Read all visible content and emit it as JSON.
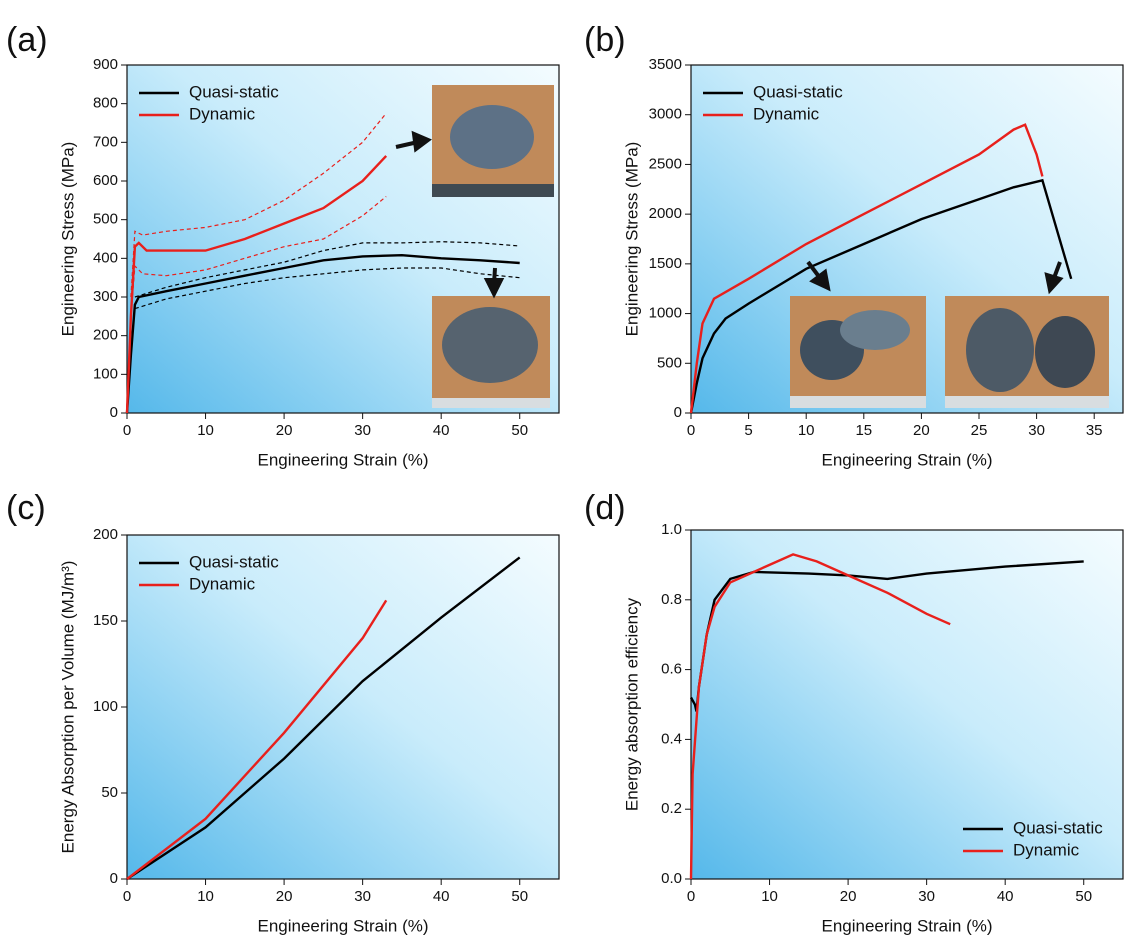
{
  "chart_data": [
    {
      "type": "line",
      "label": "(a)",
      "xlabel": "Engineering Strain (%)",
      "ylabel": "Engineering Stress (MPa)",
      "xlim": [
        0,
        55
      ],
      "ylim": [
        0,
        900
      ],
      "xticks": [
        0,
        10,
        20,
        30,
        40,
        50
      ],
      "yticks": [
        0,
        100,
        200,
        300,
        400,
        500,
        600,
        700,
        800,
        900
      ],
      "legend": "upper left",
      "series": [
        {
          "name": "Quasi-static",
          "color": "#000000",
          "x": [
            0,
            0.5,
            1,
            1.5,
            5,
            10,
            15,
            20,
            25,
            30,
            35,
            40,
            45,
            50
          ],
          "values": [
            0,
            150,
            280,
            300,
            315,
            335,
            355,
            375,
            395,
            405,
            408,
            400,
            395,
            388
          ]
        },
        {
          "name": "Dynamic",
          "color": "#e8201c",
          "x": [
            0,
            0.5,
            1,
            1.5,
            2.5,
            5,
            10,
            15,
            20,
            25,
            30,
            33
          ],
          "values": [
            0,
            250,
            430,
            440,
            420,
            420,
            420,
            450,
            490,
            530,
            600,
            665
          ]
        },
        {
          "color": "#000000",
          "dash": true,
          "x": [
            1,
            5,
            10,
            15,
            20,
            25,
            30,
            35,
            40,
            45,
            50
          ],
          "values": [
            300,
            325,
            350,
            370,
            390,
            420,
            440,
            440,
            443,
            440,
            432
          ]
        },
        {
          "color": "#000000",
          "dash": true,
          "x": [
            1,
            5,
            10,
            15,
            20,
            25,
            30,
            35,
            40,
            45,
            50
          ],
          "values": [
            270,
            295,
            315,
            335,
            350,
            360,
            370,
            375,
            375,
            360,
            350
          ]
        },
        {
          "color": "#e8201c",
          "dash": true,
          "x": [
            0.5,
            1,
            2,
            5,
            10,
            15,
            20,
            25,
            30,
            33
          ],
          "values": [
            300,
            470,
            460,
            470,
            480,
            500,
            550,
            620,
            700,
            775
          ]
        },
        {
          "color": "#e8201c",
          "dash": true,
          "x": [
            0.5,
            1,
            2,
            5,
            10,
            15,
            20,
            25,
            30,
            33
          ],
          "values": [
            250,
            380,
            360,
            355,
            370,
            400,
            430,
            450,
            510,
            560
          ]
        }
      ]
    },
    {
      "type": "line",
      "label": "(b)",
      "xlabel": "Engineering Strain (%)",
      "ylabel": "Engineering Stress (MPa)",
      "xlim": [
        0,
        37.5
      ],
      "ylim": [
        0,
        3500
      ],
      "xticks": [
        0,
        5,
        10,
        15,
        20,
        25,
        30,
        35
      ],
      "yticks": [
        0,
        500,
        1000,
        1500,
        2000,
        2500,
        3000,
        3500
      ],
      "legend": "upper left",
      "series": [
        {
          "name": "Quasi-static",
          "color": "#000000",
          "x": [
            0,
            0.5,
            1,
            2,
            3,
            5,
            10,
            15,
            20,
            25,
            28,
            30.5,
            33
          ],
          "values": [
            0,
            300,
            550,
            800,
            950,
            1100,
            1450,
            1700,
            1950,
            2150,
            2270,
            2340,
            1350
          ]
        },
        {
          "name": "Dynamic",
          "color": "#e8201c",
          "x": [
            0,
            0.5,
            1,
            2,
            5,
            10,
            15,
            20,
            25,
            28,
            29,
            30,
            30.5
          ],
          "values": [
            0,
            500,
            900,
            1150,
            1350,
            1700,
            2000,
            2300,
            2600,
            2850,
            2900,
            2600,
            2380
          ]
        }
      ]
    },
    {
      "type": "line",
      "label": "(c)",
      "xlabel": "Engineering Strain (%)",
      "ylabel": "Energy Absorption per Volume (MJ/m³)",
      "xlim": [
        0,
        55
      ],
      "ylim": [
        0,
        200
      ],
      "xticks": [
        0,
        10,
        20,
        30,
        40,
        50
      ],
      "yticks": [
        0,
        50,
        100,
        150,
        200
      ],
      "legend": "upper left",
      "series": [
        {
          "name": "Quasi-static",
          "color": "#000000",
          "x": [
            0,
            10,
            20,
            30,
            40,
            50
          ],
          "values": [
            0,
            30,
            70,
            115,
            152,
            187
          ]
        },
        {
          "name": "Dynamic",
          "color": "#e8201c",
          "x": [
            0,
            10,
            20,
            30,
            33
          ],
          "values": [
            0,
            35,
            85,
            140,
            162
          ]
        }
      ]
    },
    {
      "type": "line",
      "label": "(d)",
      "xlabel": "Engineering Strain (%)",
      "ylabel": "Energy absorption efficiency",
      "xlim": [
        0,
        55
      ],
      "ylim": [
        0,
        1
      ],
      "xticks": [
        0,
        10,
        20,
        30,
        40,
        50
      ],
      "yticks": [
        {
          "value": 0,
          "label": "0.0"
        },
        0.2,
        0.4,
        0.6,
        0.8,
        {
          "value": 1,
          "label": "1.0"
        }
      ],
      "legend": "lower right",
      "series": [
        {
          "name": "Quasi-static",
          "color": "#000000",
          "x": [
            0,
            0.5,
            0.7,
            1,
            2,
            3,
            5,
            8,
            15,
            20,
            25,
            30,
            40,
            50
          ],
          "values": [
            0.52,
            0.5,
            0.48,
            0.55,
            0.7,
            0.8,
            0.86,
            0.88,
            0.875,
            0.87,
            0.86,
            0.875,
            0.895,
            0.91
          ]
        },
        {
          "name": "Dynamic",
          "color": "#e8201c",
          "x": [
            0,
            0.2,
            1,
            2,
            3,
            5,
            10,
            13,
            16,
            20,
            25,
            30,
            33
          ],
          "values": [
            0,
            0.3,
            0.55,
            0.7,
            0.78,
            0.85,
            0.9,
            0.93,
            0.91,
            0.87,
            0.82,
            0.76,
            0.73
          ]
        }
      ]
    }
  ]
}
